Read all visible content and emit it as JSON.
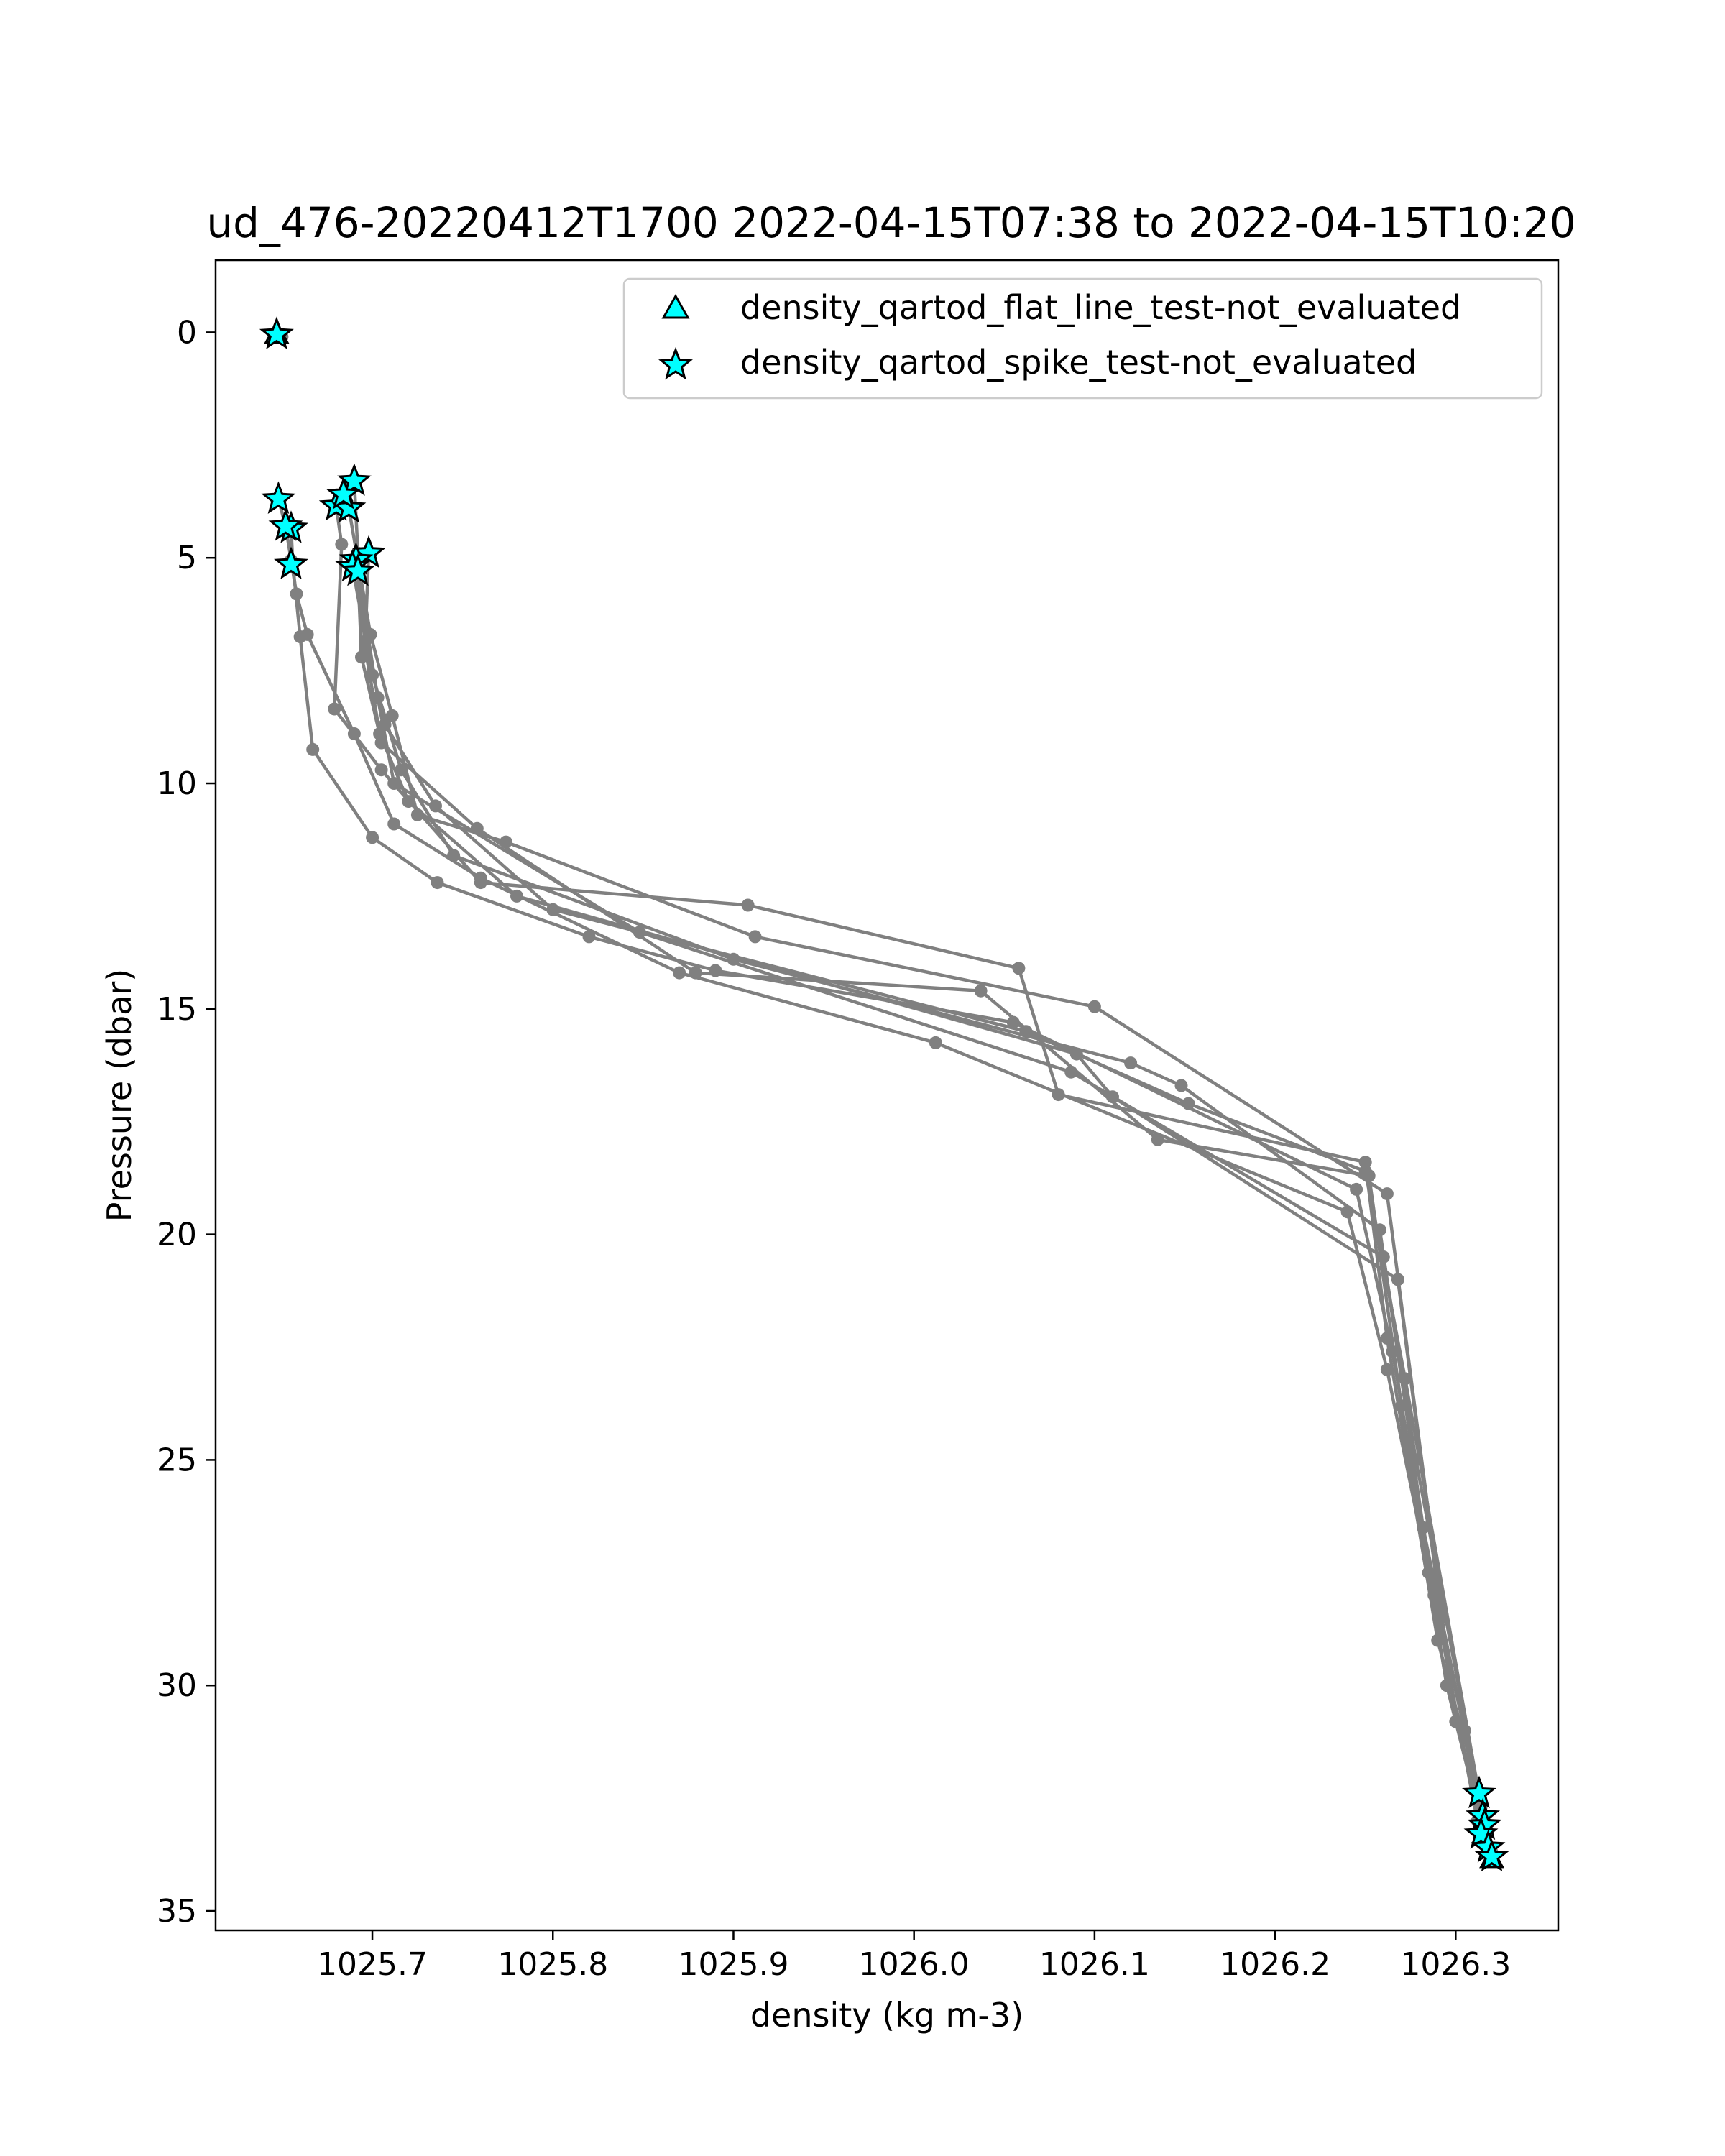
{
  "chart_data": {
    "type": "line",
    "title": "ud_476-20220412T1700 2022-04-15T07:38 to 2022-04-15T10:20",
    "xlabel": "density (kg m-3)",
    "ylabel": "Pressure (dbar)",
    "xlim": [
      1025.6132,
      1026.3568
    ],
    "ylim": [
      35.43,
      -1.6
    ],
    "y_inverted": true,
    "grid": false,
    "xticks": [
      1025.7,
      1025.8,
      1025.9,
      1026.0,
      1026.1,
      1026.2,
      1026.3
    ],
    "xtick_labels": [
      "1025.7",
      "1025.8",
      "1025.9",
      "1026.0",
      "1026.1",
      "1026.2",
      "1026.3"
    ],
    "yticks": [
      0,
      5,
      10,
      15,
      20,
      25,
      30,
      35
    ],
    "ytick_labels": [
      "0",
      "5",
      "10",
      "15",
      "20",
      "25",
      "30",
      "35"
    ],
    "line_color": "#808080",
    "marker_color": "#00ffff",
    "legend_position": "upper right",
    "legend": [
      {
        "label": "density_qartod_flat_line_test-not_evaluated",
        "marker": "triangle"
      },
      {
        "label": "density_qartod_spike_test-not_evaluated",
        "marker": "star"
      }
    ],
    "series": [
      {
        "x": [
          1025.647,
          1025.65
        ],
        "y": [
          0.05,
          0.1
        ]
      },
      {
        "x": [
          1025.648,
          1025.652,
          1025.655,
          1025.658,
          1025.664,
          1025.69,
          1025.712,
          1025.76,
          1025.87,
          1026.012,
          1026.24,
          1026.262,
          1026.285,
          1026.305,
          1026.312,
          1026.32
        ],
        "y": [
          3.7,
          4.3,
          5.05,
          5.8,
          6.7,
          8.9,
          10.9,
          12.1,
          14.2,
          15.75,
          19.5,
          23.0,
          27.5,
          31.0,
          32.5,
          33.8
        ]
      },
      {
        "x": [
          1025.655,
          1025.656,
          1025.66,
          1025.667,
          1025.7,
          1025.736,
          1025.82,
          1025.89,
          1026.055,
          1026.245,
          1026.265,
          1026.288,
          1026.312,
          1026.32
        ],
        "y": [
          4.35,
          5.15,
          6.75,
          9.25,
          11.2,
          12.2,
          13.4,
          14.15,
          15.3,
          19.0,
          22.6,
          28.0,
          33.0,
          33.7
        ]
      },
      {
        "x": [
          1025.68,
          1025.683,
          1025.679,
          1025.705,
          1025.76,
          1025.908,
          1026.058,
          1026.08,
          1026.25,
          1026.262,
          1026.29,
          1026.313
        ],
        "y": [
          3.85,
          4.7,
          8.35,
          9.7,
          12.2,
          12.7,
          14.1,
          16.9,
          18.4,
          22.3,
          29.0,
          32.4
        ]
      },
      {
        "x": [
          1025.69,
          1025.692,
          1025.696,
          1025.705,
          1025.758,
          1025.879,
          1026.037,
          1026.135,
          1026.252,
          1026.27,
          1026.295,
          1026.315
        ],
        "y": [
          3.3,
          4.9,
          7.0,
          9.1,
          11.0,
          14.2,
          14.6,
          17.9,
          18.7,
          23.8,
          30.0,
          33.2
        ]
      },
      {
        "x": [
          1025.687,
          1025.699,
          1025.711,
          1025.725,
          1025.774,
          1025.912,
          1026.1,
          1026.262,
          1026.3,
          1026.314
        ],
        "y": [
          3.9,
          6.7,
          8.5,
          10.7,
          11.3,
          13.4,
          14.95,
          19.1,
          30.8,
          32.7
        ]
      },
      {
        "x": [
          1025.698,
          1025.696,
          1025.707,
          1025.735,
          1025.8,
          1026.062,
          1026.152,
          1026.25,
          1026.272,
          1026.316
        ],
        "y": [
          4.9,
          6.85,
          8.7,
          10.5,
          12.8,
          15.5,
          17.1,
          18.6,
          23.2,
          33.1
        ]
      },
      {
        "x": [
          1025.689,
          1025.7,
          1025.716,
          1025.745,
          1025.9,
          1026.12,
          1026.148,
          1026.258,
          1026.282,
          1026.318
        ],
        "y": [
          5.2,
          7.6,
          9.7,
          11.6,
          13.9,
          16.2,
          16.7,
          19.9,
          26.5,
          33.6
        ]
      },
      {
        "x": [
          1025.691,
          1025.703,
          1025.712,
          1025.848,
          1026.087,
          1026.26,
          1026.278,
          1026.319
        ],
        "y": [
          5.05,
          8.1,
          10.0,
          13.3,
          16.4,
          20.5,
          25.0,
          33.7
        ]
      },
      {
        "x": [
          1025.692,
          1025.694,
          1025.704,
          1025.72,
          1025.78,
          1026.09,
          1026.11,
          1026.268,
          1026.292,
          1026.32
        ],
        "y": [
          5.3,
          7.2,
          8.9,
          10.4,
          12.5,
          16.0,
          16.95,
          21.0,
          28.5,
          33.9
        ]
      }
    ],
    "spike_test_stars": {
      "x": [
        1025.647,
        1025.648,
        1025.655,
        1025.652,
        1025.655,
        1025.69,
        1025.68,
        1025.687,
        1025.684,
        1025.698,
        1025.691,
        1025.689,
        1025.692,
        1026.313,
        1026.315,
        1026.316,
        1026.314,
        1026.318,
        1026.32
      ],
      "y": [
        0.05,
        3.7,
        4.35,
        4.3,
        5.15,
        3.3,
        3.85,
        3.9,
        3.6,
        4.9,
        5.05,
        5.2,
        5.3,
        32.4,
        32.9,
        33.1,
        33.3,
        33.6,
        33.8
      ]
    },
    "flat_line_test_triangles": {
      "x": [
        1025.647,
        1026.32
      ],
      "y": [
        0.05,
        33.85
      ]
    }
  }
}
